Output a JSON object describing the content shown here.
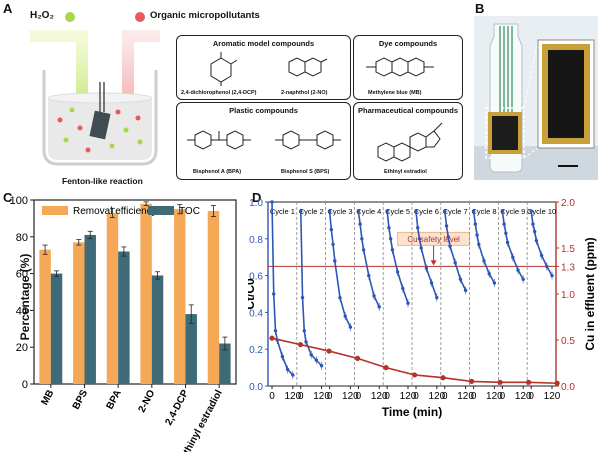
{
  "panel_labels": {
    "a": "A",
    "b": "B",
    "c": "C",
    "d": "D"
  },
  "panel_a": {
    "h2o2": "H₂O₂",
    "pollutants": "Organic micropollutants",
    "reaction": "Fenton-like reaction",
    "groups": [
      {
        "title": "Aromatic model compounds",
        "compounds": [
          "2,4-dichlorophenol (2,4-DCP)",
          "2-naphthol (2-NO)"
        ]
      },
      {
        "title": "Dye compounds",
        "compounds": [
          "Methylene blue (MB)"
        ]
      },
      {
        "title": "Plastic compounds",
        "compounds": [
          "Bisphenol A (BPA)",
          "Bisphenol S (BPS)"
        ]
      },
      {
        "title": "Pharmaceutical compounds",
        "compounds": [
          "Ethinyl estradiol"
        ]
      }
    ]
  },
  "colors": {
    "orange": "#f5a957",
    "teal": "#3f6b79",
    "blue": "#2f56b5",
    "red": "#b5332b"
  },
  "chart_data": [
    {
      "type": "bar",
      "categories": [
        "MB",
        "BPS",
        "BPA",
        "2-NO",
        "2,4-DCP",
        "Ethinyl estradiol"
      ],
      "series": [
        {
          "name": "Removal efficiency",
          "values": [
            73,
            77,
            93,
            98,
            95,
            94
          ],
          "errors": [
            2.5,
            1.5,
            2.5,
            1,
            2.5,
            3
          ]
        },
        {
          "name": "TOC",
          "values": [
            60,
            81,
            72,
            59,
            38,
            22
          ],
          "errors": [
            1.5,
            2,
            2.5,
            2,
            5,
            3.5
          ]
        }
      ],
      "ylabel": "Percentage (%)",
      "ylim": [
        0,
        100
      ],
      "yticks": [
        0,
        20,
        40,
        60,
        80,
        100
      ],
      "legend": "top"
    },
    {
      "type": "line",
      "xlabel": "Time (min)",
      "ylabel_left": "Ct/C0",
      "ylabel_right": "Cu in effluent (ppm)",
      "ylim_left": [
        0,
        1.0
      ],
      "ylim_right": [
        0,
        2.0
      ],
      "yticks_left": [
        0,
        0.2,
        0.4,
        0.6,
        0.8,
        1.0
      ],
      "yticks_right": [
        0,
        0.5,
        1.0,
        1.3,
        1.5,
        2.0
      ],
      "cycle_labels": [
        "Cycle 1",
        "Cycle 2",
        "Cycle 3",
        "Cycle 4",
        "Cycle 5",
        "Cycle 6",
        "Cycle 7",
        "Cycle 8",
        "Cycle 9",
        "Cycle 10"
      ],
      "x_tick_labels": [
        "0",
        "120"
      ],
      "time_points": [
        0,
        10,
        20,
        30,
        60,
        90,
        120
      ],
      "cycles_ct": [
        [
          1.0,
          0.5,
          0.3,
          0.25,
          0.16,
          0.09,
          0.06
        ],
        [
          0.95,
          0.48,
          0.3,
          0.24,
          0.17,
          0.14,
          0.11
        ],
        [
          0.95,
          0.85,
          0.77,
          0.68,
          0.48,
          0.38,
          0.32
        ],
        [
          0.95,
          0.88,
          0.8,
          0.74,
          0.6,
          0.49,
          0.43
        ],
        [
          0.95,
          0.86,
          0.8,
          0.74,
          0.62,
          0.53,
          0.45
        ],
        [
          0.95,
          0.86,
          0.8,
          0.75,
          0.64,
          0.56,
          0.48
        ],
        [
          0.95,
          0.87,
          0.81,
          0.76,
          0.67,
          0.58,
          0.52
        ],
        [
          0.95,
          0.88,
          0.82,
          0.77,
          0.68,
          0.61,
          0.56
        ],
        [
          0.95,
          0.88,
          0.83,
          0.78,
          0.7,
          0.63,
          0.58
        ],
        [
          0.95,
          0.88,
          0.84,
          0.79,
          0.71,
          0.65,
          0.6
        ]
      ],
      "cu_series": {
        "name": "Cu in effluent",
        "values": [
          0.52,
          0.45,
          0.38,
          0.3,
          0.2,
          0.12,
          0.09,
          0.05,
          0.04,
          0.04,
          0.03
        ]
      },
      "threshold": {
        "label": "Cu safety level",
        "value": 1.3
      }
    }
  ]
}
